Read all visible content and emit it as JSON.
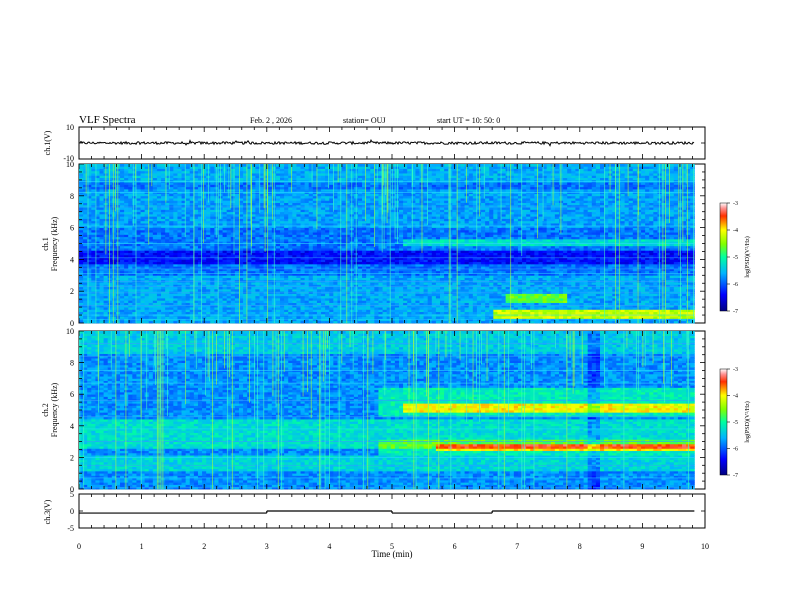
{
  "header": {
    "title": "VLF Spectra",
    "date": "Feb. 2  , 2026",
    "station": "station= OUJ",
    "start": "start  UT  =   10: 50: 0"
  },
  "chart_data": [
    {
      "type": "line",
      "name": "ch1-waveform",
      "ylabel": "ch.1(V)",
      "ylim": [
        -10,
        10
      ],
      "yticks": [
        "10",
        "-10"
      ],
      "xlim": [
        0,
        10
      ],
      "trace_level": 0
    },
    {
      "type": "heatmap",
      "name": "ch1-spectrogram",
      "ylabel": "ch.1\nFrequency (kHz)",
      "ylim": [
        0,
        10
      ],
      "yticks": [
        "0",
        "2",
        "4",
        "6",
        "8",
        "10"
      ],
      "xlim": [
        0,
        9.83
      ],
      "colorbar": {
        "label": "log(PSD)(V²/Hz)",
        "range": [
          -7,
          -3
        ],
        "ticks": [
          "-3",
          "-4",
          "-5",
          "-6",
          "-7"
        ]
      }
    },
    {
      "type": "heatmap",
      "name": "ch2-spectrogram",
      "ylabel": "ch.2\nFrequency (kHz)",
      "ylim": [
        0,
        10
      ],
      "yticks": [
        "0",
        "2",
        "4",
        "6",
        "8",
        "10"
      ],
      "xlim": [
        0,
        9.83
      ],
      "colorbar": {
        "label": "log(PSD)(V²/Hz)",
        "range": [
          -7,
          -3
        ],
        "ticks": [
          "-3",
          "-4",
          "-5",
          "-6",
          "-7"
        ]
      }
    },
    {
      "type": "line",
      "name": "ch3-status",
      "ylabel": "ch.3(V)",
      "ylim": [
        -5,
        5
      ],
      "yticks": [
        "5",
        "0",
        "-5"
      ],
      "segments": [
        {
          "from": 0,
          "to": 3.0,
          "level": -0.6
        },
        {
          "from": 3.0,
          "to": 5.0,
          "level": 0.0
        },
        {
          "from": 5.0,
          "to": 6.6,
          "level": -0.6
        },
        {
          "from": 6.6,
          "to": 9.83,
          "level": 0.0
        }
      ]
    }
  ],
  "xaxis": {
    "label": "Time (min)",
    "ticks": [
      "0",
      "1",
      "2",
      "3",
      "4",
      "5",
      "6",
      "7",
      "8",
      "9",
      "10"
    ],
    "range": [
      0,
      10
    ]
  }
}
